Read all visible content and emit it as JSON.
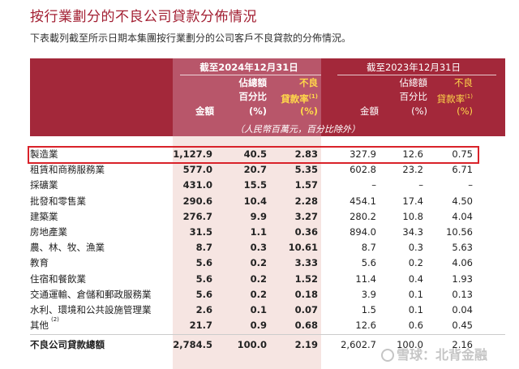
{
  "title": "按行業劃分的不良公司貸款分佈情況",
  "subtitle": "下表載列截至所示日期本集團按行業劃分的公司客戶不良貸款的分佈情況。",
  "header": {
    "period_2024": "截至2024年12月31日",
    "period_2023": "截至2023年12月31日",
    "col_amount": "金額",
    "col_share_l1": "佔總額",
    "col_share_l2": "百分比",
    "col_share_l3": "(%)",
    "col_npl_l1": "不良",
    "col_npl_l2": "貸款率",
    "col_npl_note": "(1)",
    "col_npl_l3": "(%)",
    "unit_note": "（人民幣百萬元，百分比除外）"
  },
  "rows": [
    {
      "name": "製造業",
      "note": "",
      "a24": "1,127.9",
      "s24": "40.5",
      "r24": "2.83",
      "a23": "327.9",
      "s23": "12.6",
      "r23": "0.75"
    },
    {
      "name": "租賃和商務服務業",
      "note": "",
      "a24": "577.0",
      "s24": "20.7",
      "r24": "5.35",
      "a23": "602.8",
      "s23": "23.2",
      "r23": "6.71"
    },
    {
      "name": "採礦業",
      "note": "",
      "a24": "431.0",
      "s24": "15.5",
      "r24": "1.57",
      "a23": "–",
      "s23": "–",
      "r23": "–"
    },
    {
      "name": "批發和零售業",
      "note": "",
      "a24": "290.6",
      "s24": "10.4",
      "r24": "2.28",
      "a23": "454.1",
      "s23": "17.4",
      "r23": "4.50"
    },
    {
      "name": "建築業",
      "note": "",
      "a24": "276.7",
      "s24": "9.9",
      "r24": "3.27",
      "a23": "280.2",
      "s23": "10.8",
      "r23": "4.04"
    },
    {
      "name": "房地產業",
      "note": "",
      "a24": "31.5",
      "s24": "1.1",
      "r24": "0.36",
      "a23": "894.0",
      "s23": "34.3",
      "r23": "10.56"
    },
    {
      "name": "農、林、牧、漁業",
      "note": "",
      "a24": "8.7",
      "s24": "0.3",
      "r24": "10.61",
      "a23": "8.7",
      "s23": "0.3",
      "r23": "5.63"
    },
    {
      "name": "教育",
      "note": "",
      "a24": "5.6",
      "s24": "0.2",
      "r24": "3.33",
      "a23": "5.6",
      "s23": "0.2",
      "r23": "4.06"
    },
    {
      "name": "住宿和餐飲業",
      "note": "",
      "a24": "5.6",
      "s24": "0.2",
      "r24": "1.52",
      "a23": "11.4",
      "s23": "0.4",
      "r23": "1.93"
    },
    {
      "name": "交通運輸、倉儲和郵政服務業",
      "note": "",
      "a24": "5.6",
      "s24": "0.2",
      "r24": "0.18",
      "a23": "3.9",
      "s23": "0.1",
      "r23": "0.13"
    },
    {
      "name": "水利、環境和公共設施管理業",
      "note": "",
      "a24": "2.6",
      "s24": "0.1",
      "r24": "0.07",
      "a23": "1.5",
      "s23": "0.1",
      "r23": "0.04"
    },
    {
      "name": "其他",
      "note": "(2)",
      "a24": "21.7",
      "s24": "0.9",
      "r24": "0.68",
      "a23": "12.6",
      "s23": "0.6",
      "r23": "0.45"
    }
  ],
  "total": {
    "name": "不良公司貸款總額",
    "a24": "2,784.5",
    "s24": "100.0",
    "r24": "2.19",
    "a23": "2,602.7",
    "s23": "100.0",
    "r23": "2.16"
  },
  "watermark": "雪球：北背金融"
}
